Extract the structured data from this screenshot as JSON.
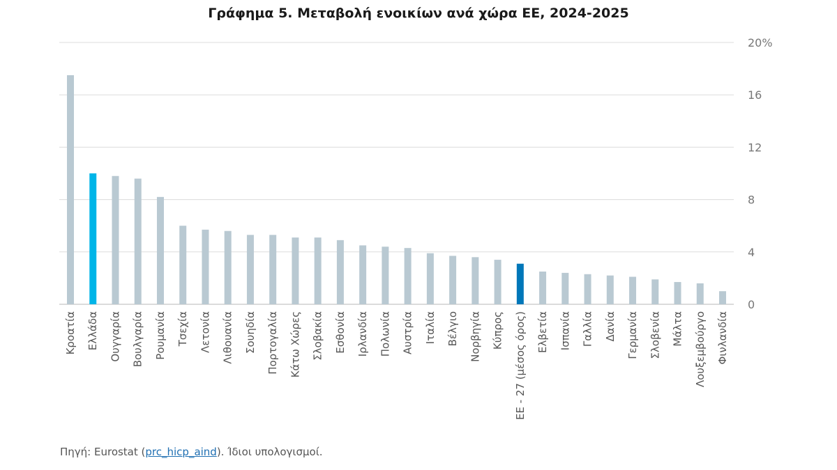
{
  "chart_data": {
    "type": "bar",
    "title": "Γράφημα 5. Μεταβολή ενοικίων ανά χώρα ΕΕ, 2024-2025",
    "xlabel": "",
    "ylabel": "",
    "ylim": [
      0,
      20
    ],
    "yticks": [
      "0",
      "4",
      "8",
      "12",
      "16",
      "20%"
    ],
    "ytick_values": [
      0,
      4,
      8,
      12,
      16,
      20
    ],
    "grid": true,
    "y_axis_side": "right",
    "categories": [
      "Κροατία",
      "Ελλάδα",
      "Ουγγαρία",
      "Βουλγαρία",
      "Ρουμανία",
      "Τσεχία",
      "Λετονία",
      "Λιθουανία",
      "Σουηδία",
      "Πορτογαλία",
      "Κάτω Χώρες",
      "Σλοβακία",
      "Εσθονία",
      "Ιρλανδία",
      "Πολωνία",
      "Αυστρία",
      "Ιταλία",
      "Βέλγιο",
      "Νορβηγία",
      "Κύπρος",
      "ΕΕ - 27 (μέσος όρος)",
      "Ελβετία",
      "Ισπανία",
      "Γαλλία",
      "Δανία",
      "Γερμανία",
      "Σλοβενία",
      "Μάλτα",
      "Λουξεμβούργο",
      "Φινλανδία"
    ],
    "values": [
      17.5,
      10.0,
      9.8,
      9.6,
      8.2,
      6.0,
      5.7,
      5.6,
      5.3,
      5.3,
      5.1,
      5.1,
      4.9,
      4.5,
      4.4,
      4.3,
      3.9,
      3.7,
      3.6,
      3.4,
      3.1,
      2.5,
      2.4,
      2.3,
      2.2,
      2.1,
      1.9,
      1.7,
      1.6,
      1.0
    ],
    "colors": {
      "default": "#b9c9d2",
      "Ελλάδα": "#00b5e8",
      "ΕΕ - 27 (μέσος όρος)": "#0077b9",
      "grid": "#dcdcdc",
      "axis": "#cfcfcf"
    }
  },
  "source": {
    "prefix": "Πηγή: Eurostat (",
    "link": "prc_hicp_aind",
    "suffix": "). Ίδιοι υπολογισμοί."
  }
}
